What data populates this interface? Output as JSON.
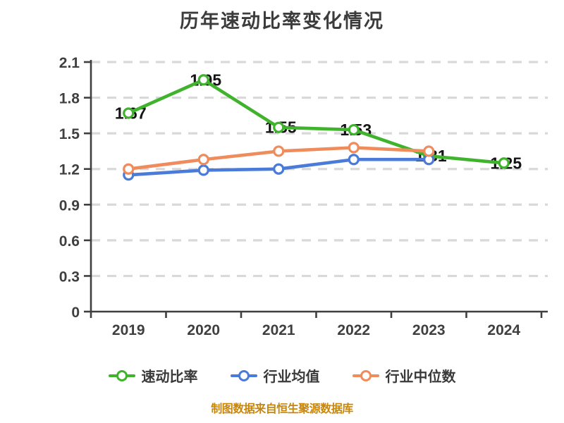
{
  "footer": "制图数据来自恒生聚源数据库",
  "chart_data": {
    "type": "line",
    "title": "历年速动比率变化情况",
    "categories": [
      "2019",
      "2020",
      "2021",
      "2022",
      "2023",
      "2024"
    ],
    "series": [
      {
        "name": "速动比率",
        "color": "#3FB32C",
        "values": [
          1.67,
          1.95,
          1.55,
          1.53,
          1.31,
          1.25
        ],
        "data_labels": true
      },
      {
        "name": "行业均值",
        "color": "#4A7BD9",
        "values": [
          1.15,
          1.19,
          1.2,
          1.28,
          1.28,
          null
        ],
        "data_labels": false
      },
      {
        "name": "行业中位数",
        "color": "#F08B5C",
        "values": [
          1.2,
          1.28,
          1.35,
          1.38,
          1.35,
          null
        ],
        "data_labels": false
      }
    ],
    "ylim": [
      0,
      2.1
    ],
    "ytick_step": 0.3,
    "yticks": [
      "0",
      "0.3",
      "0.6",
      "0.9",
      "1.2",
      "1.5",
      "1.8",
      "2.1"
    ],
    "grid": "horizontal-dashed",
    "legend_position": "bottom",
    "marker": "circle-white-fill",
    "colors": {
      "grid": "#D9D9D9",
      "axis": "#3F3F3F",
      "tick_label": "#3F3F3F",
      "data_label": "#141414",
      "title": "#3C3C3C",
      "footer": "#C8860A"
    }
  }
}
